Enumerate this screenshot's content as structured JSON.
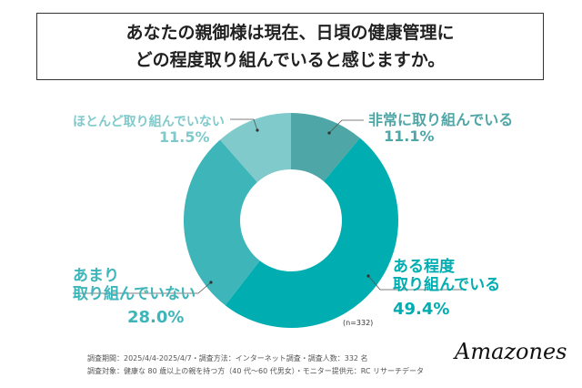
{
  "chart_data": {
    "type": "pie",
    "title": [
      "あなたの親御様は現在、日頃の健康管理に",
      "どの程度取り組んでいると感じますか。"
    ],
    "donut": true,
    "sample_size": "(n=332)",
    "slices": [
      {
        "label": "非常に取り組んでいる",
        "value": 11.1,
        "display": "11.1%",
        "color": "#4fa6a6"
      },
      {
        "label": "ある程度 取り組んでいる",
        "value": 49.4,
        "display": "49.4%",
        "color": "#00adb1"
      },
      {
        "label": "あまり 取り組んでいない",
        "value": 28.0,
        "display": "28.0%",
        "color": "#3db5b9"
      },
      {
        "label": "ほとんど取り組んでいない",
        "value": 11.5,
        "display": "11.5%",
        "color": "#80cacb"
      }
    ]
  },
  "labels": {
    "s0": "非常に取り組んでいる",
    "s1a": "ある程度",
    "s1b": "取り組んでいる",
    "s2a": "あまり",
    "s2b": "取り組んでいない",
    "s3": "ほとんど取り組んでいない"
  },
  "notes": {
    "line1": "調査期間：2025/4/4-2025/4/7・調査方法：インターネット調査・調査人数：332 名",
    "line2": "調査対象：健康な 80 歳以上の親を持つ方（40 代～60 代男女）・モニター提供元：RC リサーチデータ"
  },
  "logo": "Amazones"
}
